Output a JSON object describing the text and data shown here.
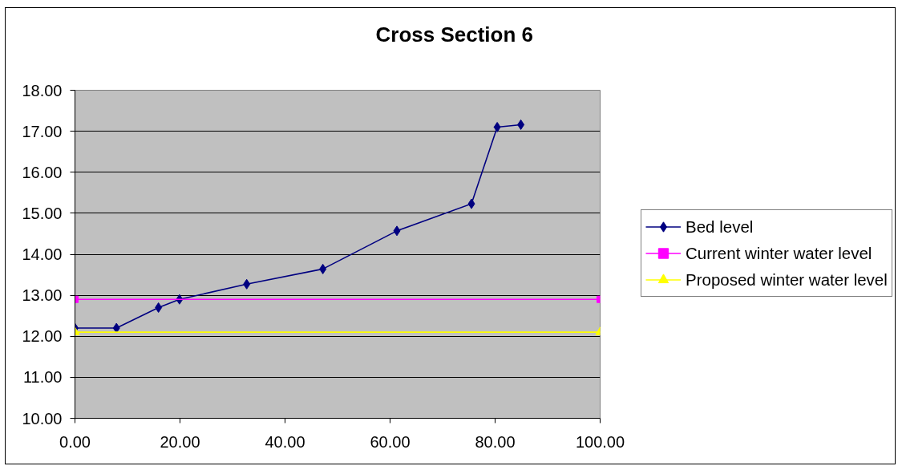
{
  "chart_data": {
    "type": "line",
    "title": "Cross Section 6",
    "xlim": [
      0,
      100
    ],
    "xticks": [
      {
        "value": 0,
        "label": "0.00"
      },
      {
        "value": 20,
        "label": "20.00"
      },
      {
        "value": 40,
        "label": "40.00"
      },
      {
        "value": 60,
        "label": "60.00"
      },
      {
        "value": 80,
        "label": "80.00"
      },
      {
        "value": 100,
        "label": "100.00"
      }
    ],
    "ylim": [
      10,
      18
    ],
    "yticks": [
      {
        "value": 10,
        "label": "10.00"
      },
      {
        "value": 11,
        "label": "11.00"
      },
      {
        "value": 12,
        "label": "12.00"
      },
      {
        "value": 13,
        "label": "13.00"
      },
      {
        "value": 14,
        "label": "14.00"
      },
      {
        "value": 15,
        "label": "15.00"
      },
      {
        "value": 16,
        "label": "16.00"
      },
      {
        "value": 17,
        "label": "17.00"
      },
      {
        "value": 18,
        "label": "18.00"
      }
    ],
    "grid": "y",
    "legend": "right",
    "series": [
      {
        "name": "Bed level",
        "color": "#000080",
        "marker": "diamond",
        "x": [
          0,
          7.9,
          15.9,
          19.9,
          32.7,
          47.2,
          61.3,
          75.5,
          80.4,
          84.9
        ],
        "values": [
          12.2,
          12.2,
          12.7,
          12.9,
          13.27,
          13.64,
          14.57,
          15.23,
          17.1,
          17.16
        ]
      },
      {
        "name": "Current winter water level",
        "color": "#ff00ff",
        "marker": "square",
        "x": [
          0,
          100
        ],
        "values": [
          12.9,
          12.9
        ]
      },
      {
        "name": "Proposed winter water level",
        "color": "#ffff00",
        "marker": "triangle",
        "x": [
          0,
          100
        ],
        "values": [
          12.1,
          12.1
        ]
      }
    ]
  }
}
